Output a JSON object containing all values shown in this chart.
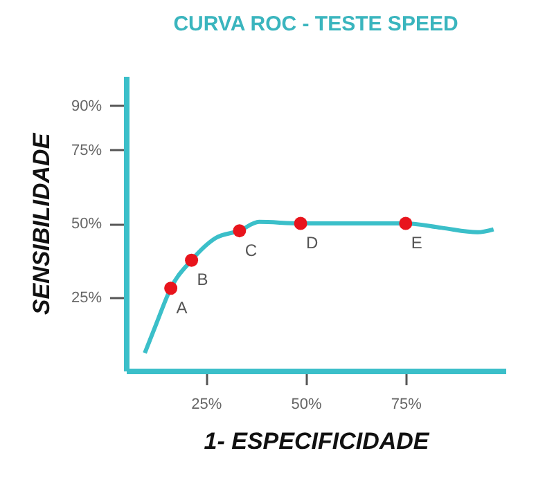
{
  "chart_data": {
    "type": "line",
    "title": "CURVA ROC - TESTE SPEED",
    "xlabel": "1- ESPECIFICIDADE",
    "ylabel": "SENSIBILIDADE",
    "xlim": [
      5,
      100
    ],
    "ylim": [
      0,
      100
    ],
    "xticks": [
      {
        "value": 25,
        "label": "25%"
      },
      {
        "value": 50,
        "label": "50%"
      },
      {
        "value": 75,
        "label": "75%"
      }
    ],
    "yticks": [
      {
        "value": 25,
        "label": "25%"
      },
      {
        "value": 50,
        "label": "50%"
      },
      {
        "value": 75,
        "label": "75%"
      },
      {
        "value": 90,
        "label": "90%"
      }
    ],
    "grid": false,
    "legend": false,
    "series": [
      {
        "type": "line",
        "color": "#3bbfc9",
        "x": [
          9.7,
          12.6,
          16.2,
          21.4,
          27.4,
          33.4,
          38.3,
          48.7,
          75,
          84,
          93,
          97
        ],
        "values": [
          6,
          16,
          28,
          37.5,
          45,
          47.5,
          50.5,
          50,
          50,
          48.5,
          47,
          48
        ]
      },
      {
        "type": "scatter",
        "color": "#e8141c",
        "marker": "circle",
        "x": [
          16.2,
          21.4,
          33.4,
          48.7,
          75
        ],
        "values": [
          28,
          37.5,
          47.5,
          50,
          50
        ]
      }
    ],
    "annotations": [
      {
        "text": "A",
        "x": 16.2,
        "y": 28
      },
      {
        "text": "B",
        "x": 21.4,
        "y": 37.5
      },
      {
        "text": "C",
        "x": 33.4,
        "y": 47.5
      },
      {
        "text": "D",
        "x": 48.7,
        "y": 50
      },
      {
        "text": "E",
        "x": 75,
        "y": 50
      }
    ]
  }
}
